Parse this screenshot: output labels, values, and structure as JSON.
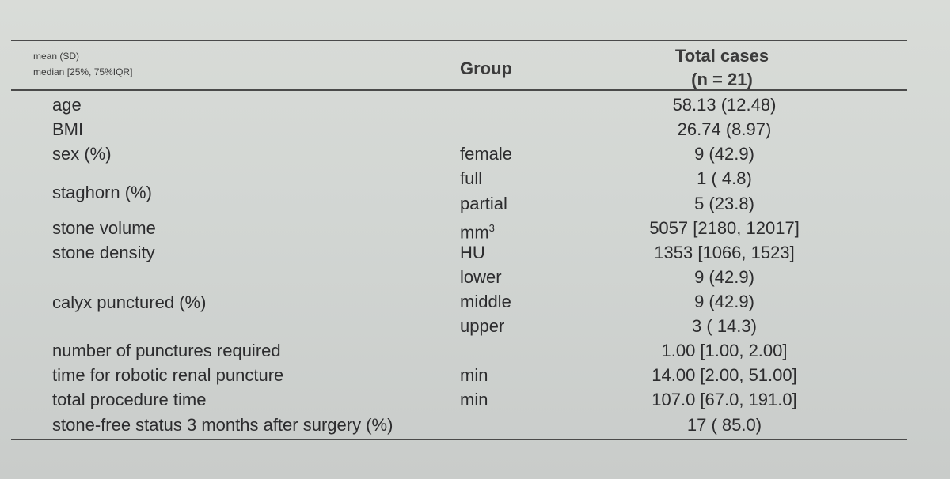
{
  "header": {
    "note_line1": "mean (SD)",
    "note_line2": "median [25%, 75%IQR]",
    "group": "Group",
    "total_line1": "Total cases",
    "total_line2": "(n = 21)"
  },
  "rows": [
    {
      "label": "age",
      "group": "",
      "value": "58.13 (12.48)"
    },
    {
      "label": "BMI",
      "group": "",
      "value": "26.74 (8.97)"
    },
    {
      "label": "sex (%)",
      "group": "female",
      "value": "9 (42.9)"
    },
    {
      "label": "",
      "group": "full",
      "value": "1 ( 4.8)"
    },
    {
      "label": "",
      "group": "partial",
      "value": "5 (23.8)"
    },
    {
      "label": "stone volume",
      "group": "mm",
      "value": "5057 [2180, 12017]"
    },
    {
      "label": "stone density",
      "group": "HU",
      "value": "1353 [1066, 1523]"
    },
    {
      "label": "",
      "group": "lower",
      "value": "9 (42.9)"
    },
    {
      "label": "",
      "group": "middle",
      "value": "9 (42.9)"
    },
    {
      "label": "",
      "group": "upper",
      "value": "3 ( 14.3)"
    },
    {
      "label": "number of punctures required",
      "group": "",
      "value": "1.00 [1.00, 2.00]"
    },
    {
      "label": "time for robotic renal puncture",
      "group": "min",
      "value": "14.00 [2.00, 51.00]"
    },
    {
      "label": "total procedure time",
      "group": "min",
      "value": "107.0 [67.0, 191.0]"
    },
    {
      "label": "stone-free status 3 months after surgery (%)",
      "group": "",
      "value": "17 ( 85.0)"
    }
  ],
  "group_labels": {
    "staghorn": "staghorn (%)",
    "calyx": "calyx punctured (%)"
  },
  "volume_unit_sup": "3"
}
